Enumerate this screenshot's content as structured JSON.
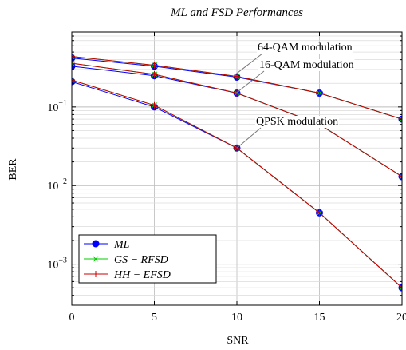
{
  "chart_data": {
    "type": "line",
    "title": "ML and FSD Performances",
    "xlabel": "SNR",
    "ylabel": "BER",
    "xlim": [
      0,
      20
    ],
    "ylim": [
      0.0003,
      0.9
    ],
    "yscale": "log",
    "grid": "on (major and minor)",
    "legend_position": "bottom-left",
    "x_ticks": [
      0,
      5,
      10,
      15,
      20
    ],
    "x_tick_labels": [
      "0",
      "5",
      "10",
      "15",
      "20"
    ],
    "y_ticks": [
      0.001,
      0.01,
      0.1
    ],
    "y_tick_labels": [
      {
        "base": "10",
        "exp": "−3"
      },
      {
        "base": "10",
        "exp": "−2"
      },
      {
        "base": "10",
        "exp": "−1"
      }
    ],
    "legend": [
      {
        "label": "ML",
        "color": "#0000ff",
        "marker": "circle"
      },
      {
        "label": "GS − RFSD",
        "color": "#00cc00",
        "marker": "x"
      },
      {
        "label": "HH − EFSD",
        "color": "#cc0000",
        "marker": "plus"
      }
    ],
    "groups": [
      {
        "annotation": "64-QAM modulation",
        "x": [
          0,
          5,
          10,
          15,
          20
        ],
        "series": [
          {
            "name": "ML",
            "values": [
              0.42,
              0.33,
              0.24,
              0.15,
              0.07
            ]
          },
          {
            "name": "GS − RFSD",
            "values": [
              0.44,
              0.34,
              0.245,
              0.15,
              0.07
            ]
          },
          {
            "name": "HH − EFSD",
            "values": [
              0.44,
              0.34,
              0.245,
              0.15,
              0.07
            ]
          }
        ]
      },
      {
        "annotation": "16-QAM modulation",
        "x": [
          0,
          5,
          10,
          15,
          20
        ],
        "series": [
          {
            "name": "ML",
            "values": [
              0.33,
              0.25,
              0.15,
              0.06,
              0.013
            ]
          },
          {
            "name": "GS − RFSD",
            "values": [
              0.36,
              0.26,
              0.15,
              0.06,
              0.013
            ]
          },
          {
            "name": "HH − EFSD",
            "values": [
              0.36,
              0.26,
              0.15,
              0.06,
              0.013
            ]
          }
        ]
      },
      {
        "annotation": "QPSK modulation",
        "x": [
          0,
          5,
          10,
          15,
          20
        ],
        "series": [
          {
            "name": "ML",
            "values": [
              0.21,
              0.1,
              0.03,
              0.0045,
              0.0005
            ]
          },
          {
            "name": "GS − RFSD",
            "values": [
              0.22,
              0.105,
              0.03,
              0.0045,
              0.0005
            ]
          },
          {
            "name": "HH − EFSD",
            "values": [
              0.22,
              0.105,
              0.03,
              0.0045,
              0.0005
            ]
          }
        ]
      }
    ]
  }
}
